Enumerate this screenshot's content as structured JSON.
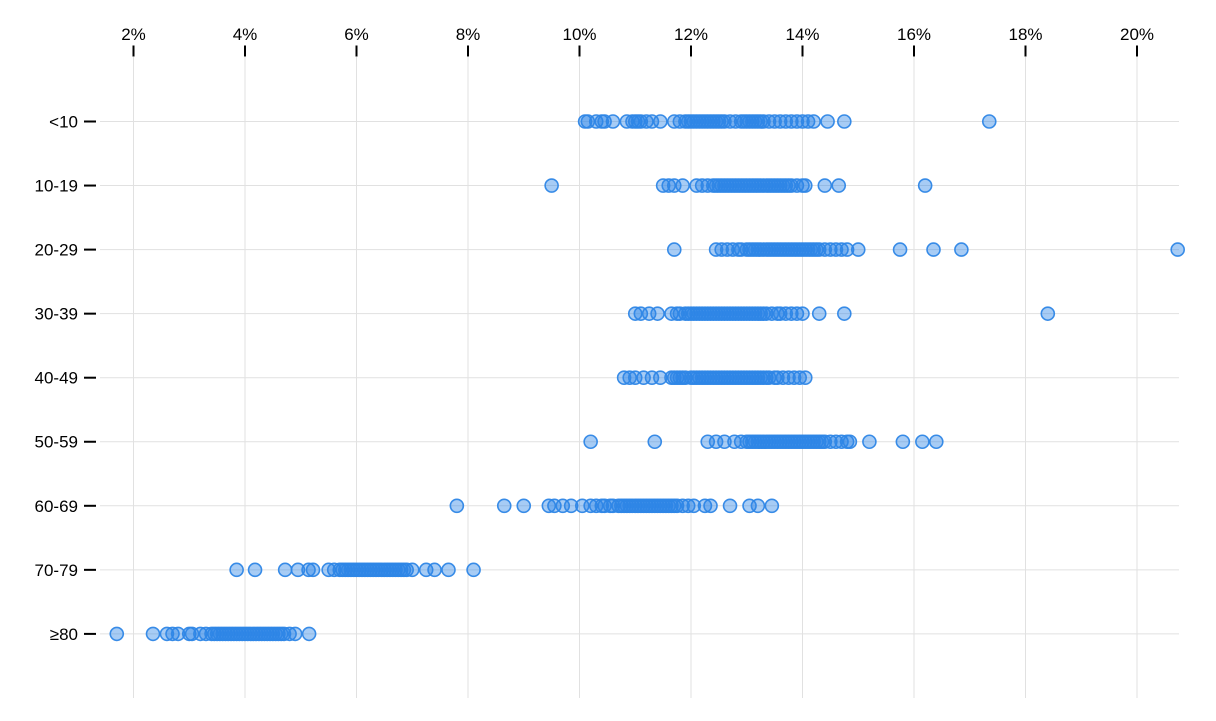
{
  "chart_data": {
    "type": "scatter",
    "variant": "horizontal-strip-plot",
    "title": "",
    "xlabel": "",
    "ylabel": "",
    "x_axis": {
      "position": "top",
      "ticks": [
        2,
        4,
        6,
        8,
        10,
        12,
        14,
        16,
        18,
        20
      ],
      "tick_labels": [
        "2%",
        "4%",
        "6%",
        "8%",
        "10%",
        "12%",
        "14%",
        "16%",
        "18%",
        "20%"
      ],
      "xlim": [
        1.4,
        20.75
      ],
      "grid": true
    },
    "y_axis": {
      "categories": [
        "<10",
        "10-19",
        "20-29",
        "30-39",
        "40-49",
        "50-59",
        "60-69",
        "70-79",
        "≥80"
      ],
      "grid": true
    },
    "legend": null,
    "series": [
      {
        "category": "<10",
        "values": [
          10.1,
          10.15,
          10.3,
          10.4,
          10.45,
          10.6,
          10.85,
          10.95,
          11.0,
          11.05,
          11.1,
          11.2,
          11.3,
          11.45,
          11.7,
          11.8,
          11.9,
          11.95,
          12.0,
          12.05,
          12.1,
          12.15,
          12.2,
          12.25,
          12.3,
          12.35,
          12.4,
          12.45,
          12.5,
          12.55,
          12.6,
          12.7,
          12.8,
          12.9,
          12.95,
          13.0,
          13.05,
          13.1,
          13.15,
          13.2,
          13.25,
          13.3,
          13.4,
          13.5,
          13.6,
          13.7,
          13.8,
          13.9,
          14.0,
          14.1,
          14.2,
          14.45,
          14.75,
          17.35
        ]
      },
      {
        "category": "10-19",
        "values": [
          9.5,
          11.5,
          11.6,
          11.7,
          11.85,
          12.1,
          12.2,
          12.3,
          12.4,
          12.45,
          12.5,
          12.55,
          12.6,
          12.65,
          12.7,
          12.75,
          12.8,
          12.85,
          12.9,
          12.95,
          13.0,
          13.05,
          13.1,
          13.15,
          13.2,
          13.25,
          13.3,
          13.35,
          13.4,
          13.45,
          13.5,
          13.55,
          13.6,
          13.65,
          13.7,
          13.75,
          13.8,
          13.9,
          14.0,
          14.05,
          14.4,
          14.65,
          16.2
        ]
      },
      {
        "category": "20-29",
        "values": [
          11.7,
          12.45,
          12.55,
          12.65,
          12.75,
          12.85,
          12.9,
          13.0,
          13.05,
          13.1,
          13.15,
          13.2,
          13.25,
          13.3,
          13.35,
          13.4,
          13.45,
          13.5,
          13.55,
          13.6,
          13.65,
          13.7,
          13.75,
          13.8,
          13.85,
          13.9,
          13.95,
          14.0,
          14.05,
          14.1,
          14.15,
          14.2,
          14.25,
          14.3,
          14.4,
          14.5,
          14.6,
          14.7,
          14.8,
          15.0,
          15.75,
          16.35,
          16.85,
          20.73
        ]
      },
      {
        "category": "30-39",
        "values": [
          11.0,
          11.1,
          11.25,
          11.4,
          11.65,
          11.75,
          11.8,
          11.9,
          11.95,
          12.0,
          12.05,
          12.1,
          12.15,
          12.2,
          12.25,
          12.3,
          12.35,
          12.4,
          12.45,
          12.5,
          12.55,
          12.6,
          12.65,
          12.7,
          12.75,
          12.8,
          12.85,
          12.9,
          12.95,
          13.0,
          13.05,
          13.1,
          13.15,
          13.2,
          13.25,
          13.3,
          13.35,
          13.45,
          13.55,
          13.6,
          13.7,
          13.8,
          13.9,
          14.0,
          14.3,
          14.75,
          18.4
        ]
      },
      {
        "category": "40-49",
        "values": [
          10.8,
          10.9,
          11.0,
          11.15,
          11.3,
          11.45,
          11.65,
          11.7,
          11.75,
          11.8,
          11.85,
          11.9,
          12.0,
          12.05,
          12.1,
          12.15,
          12.2,
          12.25,
          12.3,
          12.35,
          12.4,
          12.45,
          12.5,
          12.55,
          12.6,
          12.65,
          12.7,
          12.75,
          12.8,
          12.85,
          12.9,
          12.95,
          13.0,
          13.05,
          13.1,
          13.15,
          13.2,
          13.25,
          13.3,
          13.35,
          13.4,
          13.5,
          13.55,
          13.65,
          13.75,
          13.85,
          13.95,
          14.05
        ]
      },
      {
        "category": "50-59",
        "values": [
          10.2,
          11.35,
          12.3,
          12.45,
          12.6,
          12.78,
          12.9,
          13.0,
          13.05,
          13.1,
          13.15,
          13.2,
          13.25,
          13.3,
          13.35,
          13.4,
          13.45,
          13.5,
          13.55,
          13.6,
          13.65,
          13.7,
          13.75,
          13.8,
          13.85,
          13.9,
          13.95,
          14.0,
          14.05,
          14.1,
          14.15,
          14.2,
          14.25,
          14.3,
          14.35,
          14.4,
          14.5,
          14.6,
          14.7,
          14.8,
          14.85,
          15.2,
          15.8,
          16.15,
          16.4
        ]
      },
      {
        "category": "60-69",
        "values": [
          7.8,
          8.65,
          9.0,
          9.45,
          9.55,
          9.7,
          9.85,
          10.05,
          10.2,
          10.3,
          10.4,
          10.45,
          10.55,
          10.6,
          10.7,
          10.75,
          10.8,
          10.85,
          10.9,
          10.95,
          11.0,
          11.05,
          11.1,
          11.15,
          11.2,
          11.25,
          11.3,
          11.35,
          11.4,
          11.45,
          11.5,
          11.55,
          11.6,
          11.65,
          11.7,
          11.75,
          11.85,
          11.95,
          12.05,
          12.25,
          12.35,
          12.7,
          13.05,
          13.2,
          13.45
        ]
      },
      {
        "category": "70-79",
        "values": [
          3.85,
          4.18,
          4.72,
          4.95,
          5.14,
          5.22,
          5.5,
          5.6,
          5.7,
          5.75,
          5.8,
          5.85,
          5.9,
          5.95,
          6.0,
          6.05,
          6.1,
          6.15,
          6.2,
          6.25,
          6.3,
          6.35,
          6.4,
          6.45,
          6.5,
          6.55,
          6.6,
          6.65,
          6.7,
          6.75,
          6.8,
          6.85,
          6.9,
          7.0,
          7.25,
          7.4,
          7.65,
          8.1
        ]
      },
      {
        "category": "≥80",
        "values": [
          1.7,
          2.35,
          2.6,
          2.7,
          2.8,
          3.0,
          3.05,
          3.2,
          3.3,
          3.4,
          3.45,
          3.5,
          3.55,
          3.6,
          3.65,
          3.7,
          3.75,
          3.8,
          3.85,
          3.9,
          3.95,
          4.0,
          4.05,
          4.1,
          4.15,
          4.2,
          4.25,
          4.3,
          4.35,
          4.4,
          4.45,
          4.5,
          4.55,
          4.6,
          4.65,
          4.7,
          4.8,
          4.9,
          5.15
        ]
      }
    ],
    "colors": {
      "dot_stroke": "#2e86e6",
      "dot_fill": "#2e86e6",
      "dot_fill_opacity": 0.42,
      "dot_stroke_opacity": 0.95,
      "gridline": "#e1e1e1",
      "axis_tick": "#000000",
      "axis_text": "#000000",
      "background": "#ffffff"
    }
  }
}
